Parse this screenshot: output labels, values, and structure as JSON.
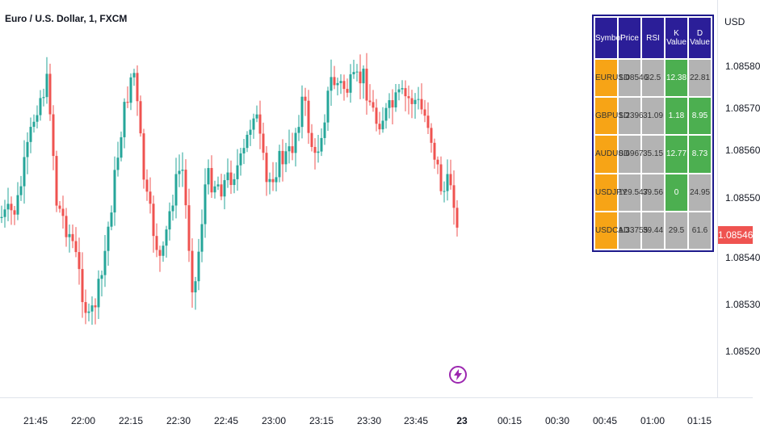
{
  "legend": {
    "title": "Euro / U.S. Dollar, 1, FXCM"
  },
  "price_axis": {
    "currency": "USD",
    "ticks": [
      "1.08580",
      "1.08570",
      "1.08560",
      "1.08550",
      "1.08540",
      "1.08530",
      "1.08520"
    ],
    "last_price": "1.08546",
    "last_price_color": "#ef5350"
  },
  "time_axis": {
    "ticks": [
      "21:45",
      "22:00",
      "22:15",
      "22:30",
      "22:45",
      "23:00",
      "23:15",
      "23:30",
      "23:45",
      "23",
      "00:15",
      "00:30",
      "00:45",
      "01:00",
      "01:15"
    ]
  },
  "table": {
    "headers": [
      "Symbol",
      "Price",
      "RSI",
      "K Value",
      "D Value"
    ],
    "rows": [
      [
        "EURUSD",
        "1.08546",
        "32.5",
        "12.38",
        "22.81"
      ],
      [
        "GBPUSD",
        "1.2396",
        "31.09",
        "1.18",
        "8.95"
      ],
      [
        "AUDUSD",
        "0.6967",
        "35.15",
        "12.77",
        "8.73"
      ],
      [
        "USDJPY",
        "129.547",
        "39.56",
        "0",
        "24.95"
      ],
      [
        "USDCAD",
        "1.33755",
        "39.44",
        "29.5",
        "61.6"
      ]
    ],
    "green_cells": [
      [
        0,
        3
      ],
      [
        1,
        3
      ],
      [
        1,
        4
      ],
      [
        2,
        3
      ],
      [
        2,
        4
      ],
      [
        3,
        3
      ]
    ]
  },
  "colors": {
    "up": "#26a69a",
    "down": "#ef5350",
    "table_header": "#2b1e98",
    "symbol_cell": "#f7a416",
    "neutral_cell": "#b3b3b3",
    "green_cell": "#4caf50"
  },
  "icons": {
    "event_marker": "lightning-icon"
  }
}
